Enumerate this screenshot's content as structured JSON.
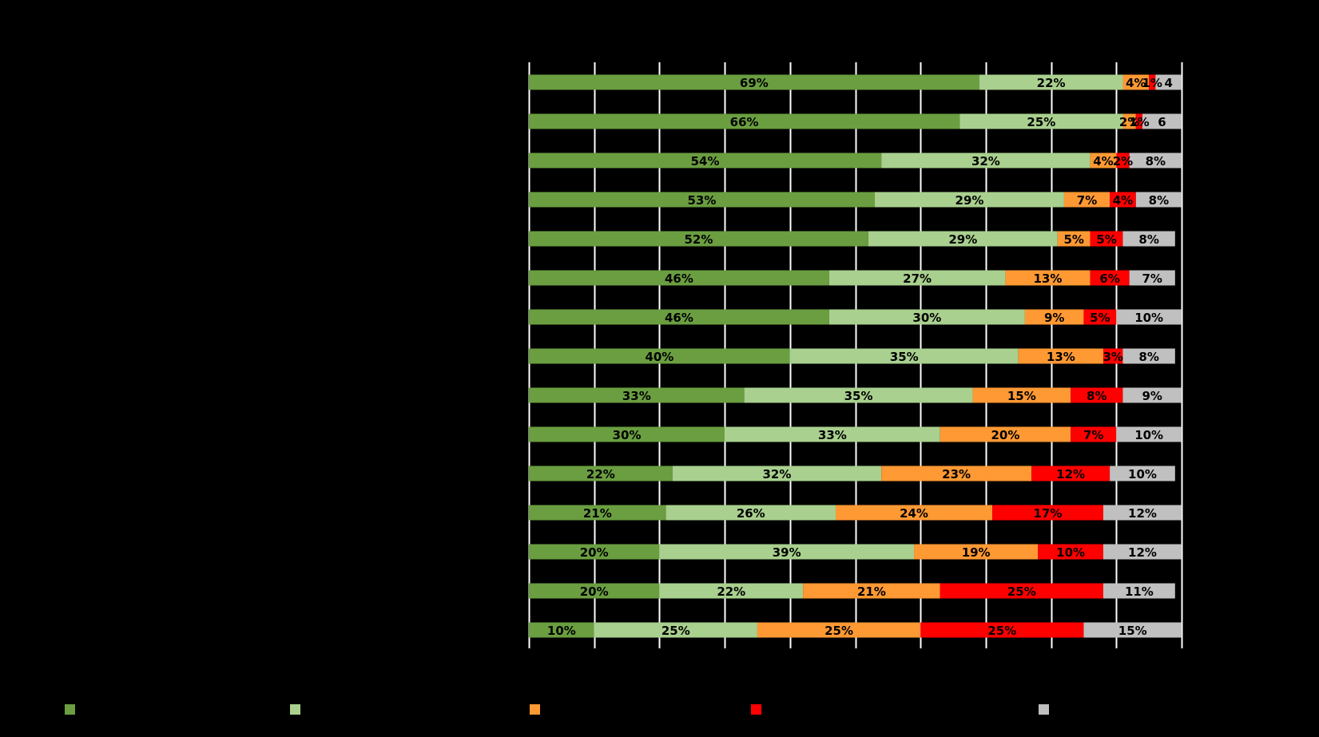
{
  "chart_data": {
    "type": "bar",
    "orientation": "horizontal",
    "stacked": true,
    "xlim": [
      0,
      100
    ],
    "grid": true,
    "legend_position": "bottom",
    "categories": [
      "",
      "",
      "",
      "",
      "",
      "",
      "",
      "",
      "",
      "",
      "",
      "",
      "",
      "",
      ""
    ],
    "series": [
      {
        "color": "#6a9e40",
        "values": [
          69,
          66,
          54,
          53,
          52,
          46,
          46,
          40,
          33,
          30,
          22,
          21,
          20,
          20,
          10
        ],
        "labels": [
          "69%",
          "66%",
          "54%",
          "53%",
          "52%",
          "46%",
          "46%",
          "40%",
          "33%",
          "30%",
          "22%",
          "21%",
          "20%",
          "20%",
          "10%"
        ]
      },
      {
        "color": "#a9d08e",
        "values": [
          22,
          25,
          32,
          29,
          29,
          27,
          30,
          35,
          35,
          33,
          32,
          26,
          39,
          22,
          25
        ],
        "labels": [
          "22%",
          "25%",
          "32%",
          "29%",
          "29%",
          "27%",
          "30%",
          "35%",
          "35%",
          "33%",
          "32%",
          "26%",
          "39%",
          "22%",
          "25%"
        ]
      },
      {
        "color": "#ff9933",
        "values": [
          4,
          2,
          4,
          7,
          5,
          13,
          9,
          13,
          15,
          20,
          23,
          24,
          19,
          21,
          25
        ],
        "labels": [
          "4%",
          "2%",
          "4%",
          "7%",
          "5%",
          "13%",
          "9%",
          "13%",
          "15%",
          "20%",
          "23%",
          "24%",
          "19%",
          "21%",
          "25%"
        ]
      },
      {
        "color": "#ff0000",
        "values": [
          1,
          1,
          2,
          4,
          5,
          6,
          5,
          3,
          8,
          7,
          12,
          17,
          10,
          25,
          25
        ],
        "labels": [
          "1%",
          "1%",
          "2%",
          "4%",
          "5%",
          "6%",
          "5%",
          "3%",
          "8%",
          "7%",
          "12%",
          "17%",
          "10%",
          "25%",
          "25%"
        ]
      },
      {
        "color": "#c0c0c0",
        "values": [
          4,
          6,
          8,
          8,
          8,
          7,
          10,
          8,
          9,
          10,
          10,
          12,
          12,
          11,
          15
        ],
        "labels": [
          "4",
          "6",
          "8%",
          "8%",
          "8%",
          "7%",
          "10%",
          "8%",
          "9%",
          "10%",
          "10%",
          "12%",
          "12%",
          "11%",
          "15%"
        ]
      }
    ]
  }
}
